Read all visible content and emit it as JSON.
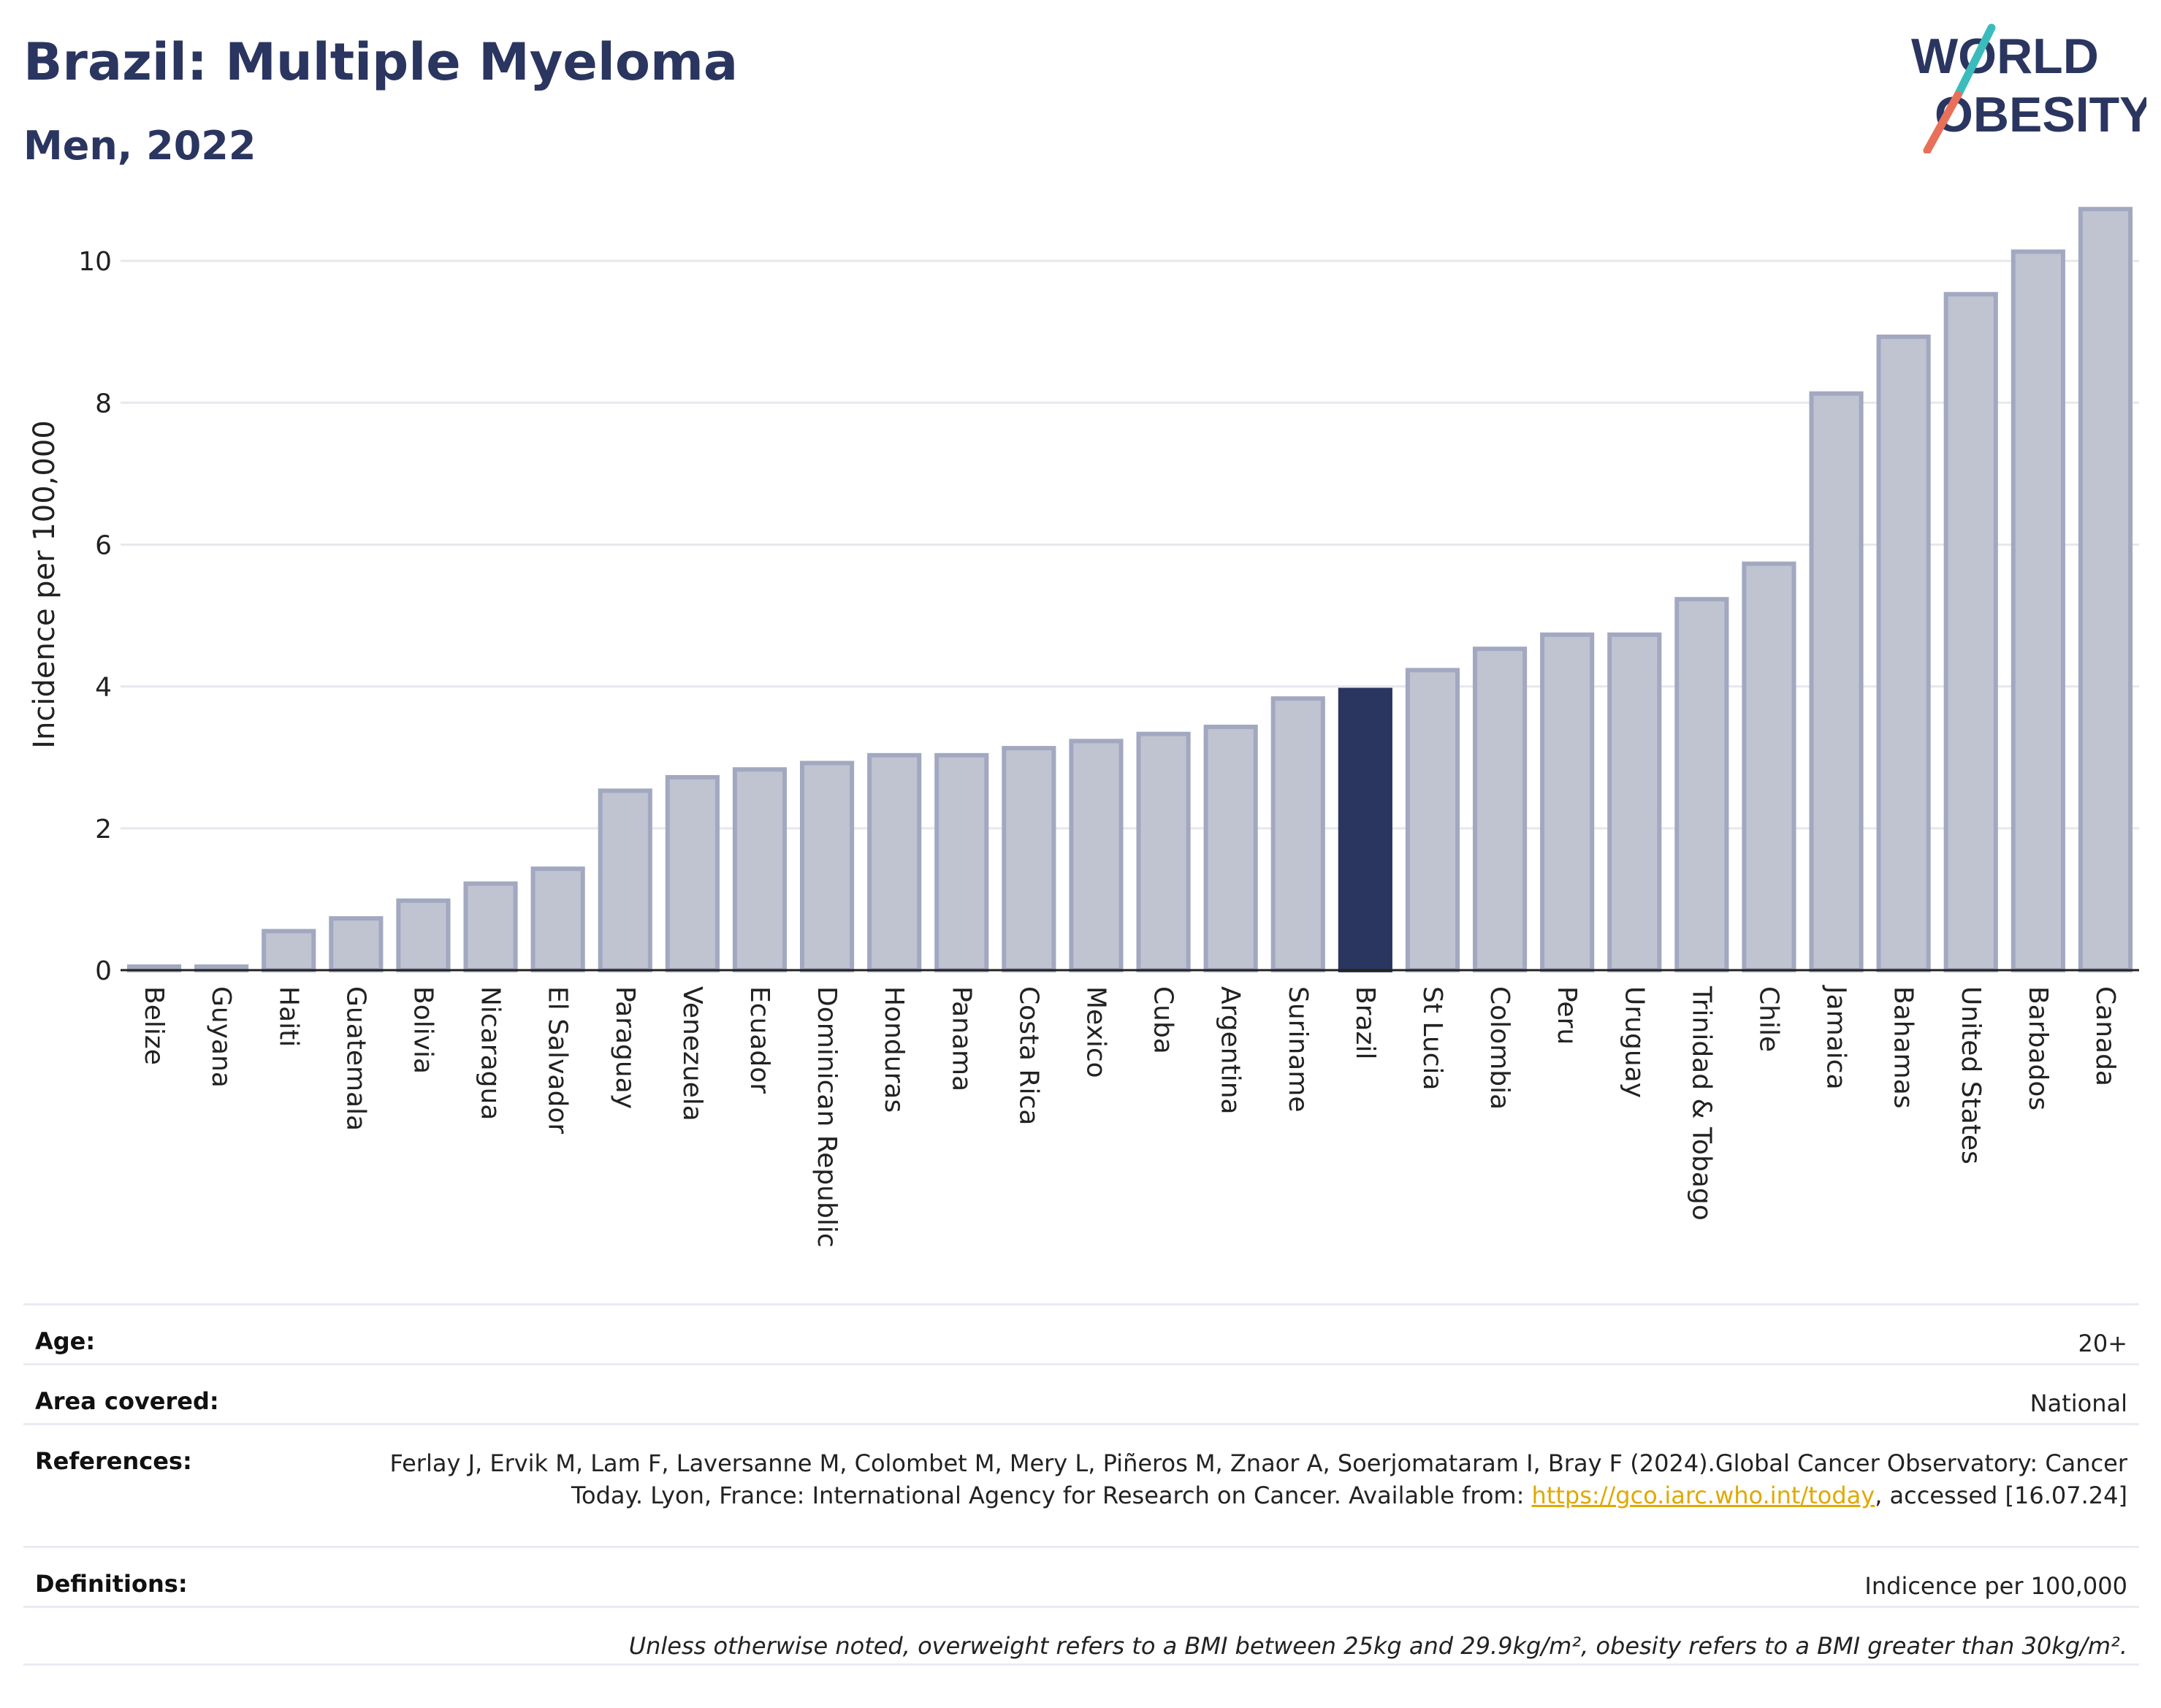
{
  "header": {
    "title": "Brazil: Multiple Myeloma",
    "subtitle": "Men, 2022",
    "logo_line1": "WORLD",
    "logo_line2": "OBESITY"
  },
  "colors": {
    "brand": "#2a3560",
    "bar_default": "#c0c4d1",
    "bar_border": "#a2a8c0",
    "bar_highlight": "#2a3560",
    "logo_slash_top": "#3bbcbc",
    "logo_slash_bottom": "#e8705a",
    "link": "#e0a800"
  },
  "chart_data": {
    "type": "bar",
    "title": "Brazil: Multiple Myeloma",
    "subtitle": "Men, 2022",
    "xlabel": "",
    "ylabel": "Incidence per 100,000",
    "ylim": [
      0,
      11
    ],
    "yticks": [
      0,
      2,
      4,
      6,
      8,
      10
    ],
    "grid": true,
    "highlight": "Brazil",
    "categories": [
      "Belize",
      "Guyana",
      "Haiti",
      "Guatemala",
      "Bolivia",
      "Nicaragua",
      "El Salvador",
      "Paraguay",
      "Venezuela",
      "Ecuador",
      "Dominican Republic",
      "Honduras",
      "Panama",
      "Costa Rica",
      "Mexico",
      "Cuba",
      "Argentina",
      "Suriname",
      "Brazil",
      "St Lucia",
      "Colombia",
      "Peru",
      "Uruguay",
      "Trinidad & Tobago",
      "Chile",
      "Jamaica",
      "Bahamas",
      "United States",
      "Barbados",
      "Canada"
    ],
    "values": [
      0.05,
      0.05,
      0.55,
      0.73,
      0.98,
      1.22,
      1.43,
      2.53,
      2.72,
      2.83,
      2.92,
      3.03,
      3.03,
      3.13,
      3.23,
      3.33,
      3.43,
      3.83,
      3.95,
      4.23,
      4.53,
      4.73,
      4.73,
      5.23,
      5.73,
      8.13,
      8.93,
      9.53,
      10.13,
      10.73
    ]
  },
  "info": {
    "age_label": "Age:",
    "age_value": "20+",
    "area_label": "Area covered:",
    "area_value": "National",
    "refs_label": "References:",
    "refs_text_1": "Ferlay J, Ervik M, Lam F, Laversanne M, Colombet M, Mery L, Piñeros M, Znaor A, Soerjomataram I, Bray F (2024).Global Cancer Observatory: Cancer Today. Lyon, France: International Agency for Research on Cancer. Available from: ",
    "refs_link": "https://gco.iarc.who.int/today",
    "refs_text_2": ", accessed [16.07.24]",
    "defs_label": "Definitions:",
    "defs_value": "Indicence per 100,000",
    "note": "Unless otherwise noted, overweight refers to a BMI between 25kg and 29.9kg/m², obesity refers to a BMI greater than 30kg/m²."
  }
}
